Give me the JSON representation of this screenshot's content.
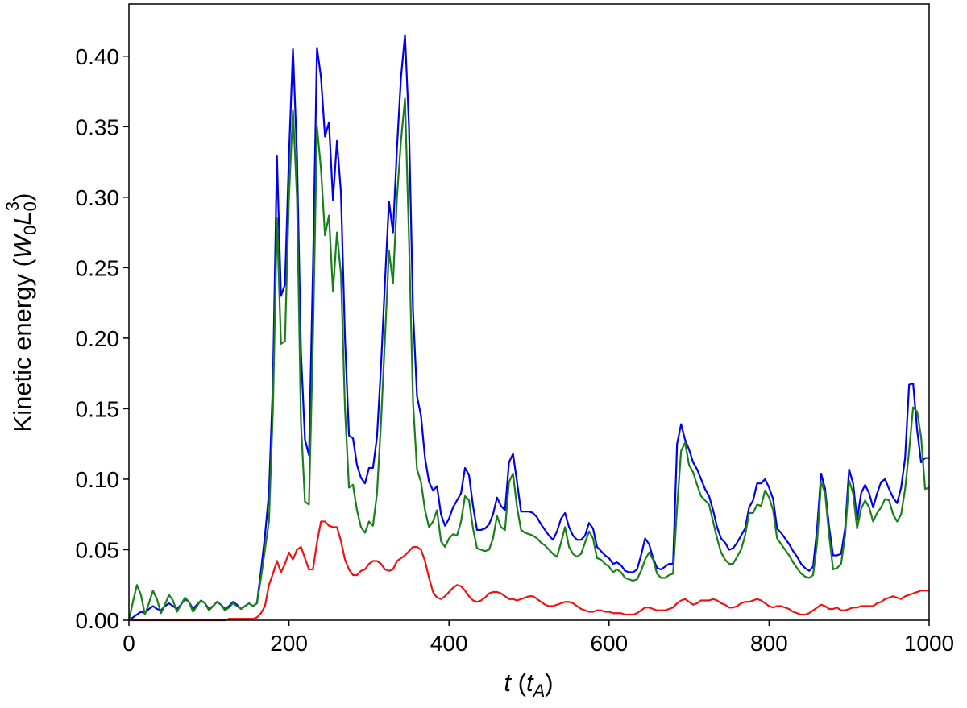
{
  "chart_data": {
    "type": "line",
    "xlabel_parts": [
      "t",
      " (",
      "t",
      "A",
      ")"
    ],
    "ylabel_parts": [
      "Kinetic energy (",
      "W",
      "0",
      "L",
      "0",
      "3",
      ")"
    ],
    "xlim": [
      0,
      1000
    ],
    "xticks": [
      0,
      200,
      400,
      600,
      800,
      1000
    ],
    "ylim": [
      0,
      0.437
    ],
    "yticks": [
      {
        "value": 0,
        "label": "0.00"
      },
      {
        "value": 0.05,
        "label": "0.05"
      },
      {
        "value": 0.1,
        "label": "0.10"
      },
      {
        "value": 0.15,
        "label": "0.15"
      },
      {
        "value": 0.2,
        "label": "0.20"
      },
      {
        "value": 0.25,
        "label": "0.25"
      },
      {
        "value": 0.3,
        "label": "0.30"
      },
      {
        "value": 0.35,
        "label": "0.35"
      },
      {
        "value": 0.4,
        "label": "0.40"
      }
    ],
    "grid": false,
    "x": [
      0,
      5,
      10,
      15,
      20,
      25,
      30,
      35,
      40,
      45,
      50,
      55,
      60,
      65,
      70,
      75,
      80,
      85,
      90,
      95,
      100,
      105,
      110,
      115,
      120,
      125,
      130,
      135,
      140,
      145,
      150,
      155,
      160,
      165,
      170,
      175,
      180,
      185,
      190,
      195,
      200,
      205,
      210,
      215,
      220,
      225,
      230,
      235,
      240,
      245,
      250,
      255,
      260,
      265,
      270,
      275,
      280,
      285,
      290,
      295,
      300,
      305,
      310,
      315,
      320,
      325,
      330,
      335,
      340,
      345,
      350,
      355,
      360,
      365,
      370,
      375,
      380,
      385,
      390,
      395,
      400,
      405,
      410,
      415,
      420,
      425,
      430,
      435,
      440,
      445,
      450,
      455,
      460,
      465,
      470,
      475,
      480,
      485,
      490,
      495,
      500,
      505,
      510,
      515,
      520,
      525,
      530,
      535,
      540,
      545,
      550,
      555,
      560,
      565,
      570,
      575,
      580,
      585,
      590,
      595,
      600,
      605,
      610,
      615,
      620,
      625,
      630,
      635,
      640,
      645,
      650,
      655,
      660,
      665,
      670,
      675,
      680,
      685,
      690,
      695,
      700,
      705,
      710,
      715,
      720,
      725,
      730,
      735,
      740,
      745,
      750,
      755,
      760,
      765,
      770,
      775,
      780,
      785,
      790,
      795,
      800,
      805,
      810,
      815,
      820,
      825,
      830,
      835,
      840,
      845,
      850,
      855,
      860,
      865,
      870,
      875,
      880,
      885,
      890,
      895,
      900,
      905,
      910,
      915,
      920,
      925,
      930,
      935,
      940,
      945,
      950,
      955,
      960,
      965,
      970,
      975,
      980,
      985,
      990,
      995,
      1000
    ],
    "series": [
      {
        "color": "#0000ee",
        "values": [
          0.0,
          0.002,
          0.004,
          0.006,
          0.005,
          0.008,
          0.01,
          0.008,
          0.007,
          0.01,
          0.012,
          0.01,
          0.008,
          0.011,
          0.015,
          0.013,
          0.008,
          0.011,
          0.014,
          0.012,
          0.008,
          0.01,
          0.013,
          0.011,
          0.008,
          0.01,
          0.013,
          0.011,
          0.008,
          0.01,
          0.012,
          0.01,
          0.012,
          0.035,
          0.06,
          0.09,
          0.17,
          0.329,
          0.23,
          0.238,
          0.33,
          0.405,
          0.33,
          0.19,
          0.128,
          0.117,
          0.25,
          0.406,
          0.385,
          0.343,
          0.353,
          0.298,
          0.34,
          0.303,
          0.2,
          0.131,
          0.129,
          0.11,
          0.101,
          0.097,
          0.108,
          0.108,
          0.13,
          0.18,
          0.24,
          0.297,
          0.275,
          0.335,
          0.385,
          0.415,
          0.35,
          0.22,
          0.159,
          0.145,
          0.115,
          0.098,
          0.092,
          0.095,
          0.075,
          0.067,
          0.072,
          0.08,
          0.085,
          0.09,
          0.108,
          0.103,
          0.081,
          0.064,
          0.064,
          0.065,
          0.068,
          0.075,
          0.087,
          0.081,
          0.078,
          0.112,
          0.118,
          0.098,
          0.077,
          0.077,
          0.077,
          0.076,
          0.073,
          0.068,
          0.064,
          0.06,
          0.057,
          0.063,
          0.072,
          0.076,
          0.066,
          0.06,
          0.057,
          0.057,
          0.06,
          0.069,
          0.065,
          0.052,
          0.049,
          0.046,
          0.044,
          0.04,
          0.041,
          0.039,
          0.035,
          0.034,
          0.034,
          0.036,
          0.046,
          0.058,
          0.054,
          0.044,
          0.037,
          0.036,
          0.038,
          0.04,
          0.04,
          0.125,
          0.139,
          0.128,
          0.121,
          0.112,
          0.107,
          0.1,
          0.093,
          0.088,
          0.078,
          0.066,
          0.058,
          0.055,
          0.05,
          0.051,
          0.055,
          0.06,
          0.065,
          0.08,
          0.085,
          0.097,
          0.097,
          0.1,
          0.094,
          0.086,
          0.065,
          0.062,
          0.058,
          0.054,
          0.049,
          0.045,
          0.04,
          0.037,
          0.035,
          0.038,
          0.065,
          0.104,
          0.093,
          0.066,
          0.046,
          0.046,
          0.047,
          0.065,
          0.107,
          0.097,
          0.071,
          0.09,
          0.096,
          0.09,
          0.08,
          0.09,
          0.098,
          0.1,
          0.093,
          0.087,
          0.083,
          0.094,
          0.115,
          0.167,
          0.168,
          0.135,
          0.112,
          0.115,
          0.115
        ]
      },
      {
        "color": "#1a7f1a",
        "values": [
          0.0,
          0.013,
          0.025,
          0.018,
          0.004,
          0.012,
          0.021,
          0.015,
          0.005,
          0.011,
          0.018,
          0.014,
          0.006,
          0.011,
          0.016,
          0.013,
          0.006,
          0.01,
          0.014,
          0.012,
          0.007,
          0.01,
          0.013,
          0.011,
          0.007,
          0.009,
          0.012,
          0.01,
          0.008,
          0.01,
          0.012,
          0.01,
          0.012,
          0.03,
          0.05,
          0.07,
          0.15,
          0.285,
          0.196,
          0.198,
          0.3,
          0.362,
          0.3,
          0.14,
          0.084,
          0.082,
          0.2,
          0.35,
          0.32,
          0.273,
          0.287,
          0.233,
          0.275,
          0.245,
          0.15,
          0.094,
          0.096,
          0.078,
          0.066,
          0.062,
          0.07,
          0.067,
          0.09,
          0.14,
          0.2,
          0.262,
          0.239,
          0.3,
          0.34,
          0.37,
          0.27,
          0.155,
          0.107,
          0.098,
          0.078,
          0.066,
          0.07,
          0.078,
          0.056,
          0.052,
          0.058,
          0.061,
          0.06,
          0.07,
          0.088,
          0.085,
          0.065,
          0.051,
          0.05,
          0.049,
          0.05,
          0.058,
          0.074,
          0.066,
          0.064,
          0.098,
          0.104,
          0.08,
          0.064,
          0.062,
          0.061,
          0.06,
          0.058,
          0.055,
          0.053,
          0.05,
          0.047,
          0.045,
          0.055,
          0.066,
          0.052,
          0.047,
          0.045,
          0.047,
          0.055,
          0.063,
          0.058,
          0.044,
          0.043,
          0.04,
          0.038,
          0.034,
          0.036,
          0.034,
          0.03,
          0.029,
          0.028,
          0.029,
          0.035,
          0.043,
          0.048,
          0.043,
          0.033,
          0.03,
          0.03,
          0.032,
          0.033,
          0.08,
          0.12,
          0.126,
          0.11,
          0.105,
          0.096,
          0.088,
          0.085,
          0.082,
          0.07,
          0.058,
          0.048,
          0.043,
          0.04,
          0.04,
          0.045,
          0.05,
          0.06,
          0.076,
          0.076,
          0.082,
          0.081,
          0.092,
          0.087,
          0.078,
          0.058,
          0.054,
          0.05,
          0.046,
          0.041,
          0.037,
          0.033,
          0.031,
          0.03,
          0.032,
          0.055,
          0.098,
          0.09,
          0.06,
          0.036,
          0.037,
          0.04,
          0.06,
          0.099,
          0.09,
          0.065,
          0.079,
          0.085,
          0.08,
          0.07,
          0.076,
          0.08,
          0.086,
          0.085,
          0.075,
          0.07,
          0.075,
          0.093,
          0.12,
          0.151,
          0.148,
          0.13,
          0.093,
          0.094
        ]
      },
      {
        "color": "#ee1111",
        "values": [
          0,
          0,
          0,
          0,
          0,
          0,
          0,
          0,
          0,
          0,
          0,
          0,
          0,
          0,
          0,
          0,
          0,
          0,
          0,
          0,
          0,
          0,
          0,
          0,
          0,
          0.001,
          0.001,
          0.001,
          0.001,
          0.001,
          0.001,
          0.001,
          0.002,
          0.005,
          0.01,
          0.025,
          0.033,
          0.042,
          0.034,
          0.04,
          0.048,
          0.043,
          0.05,
          0.052,
          0.044,
          0.036,
          0.036,
          0.055,
          0.07,
          0.07,
          0.067,
          0.066,
          0.066,
          0.056,
          0.043,
          0.036,
          0.032,
          0.032,
          0.035,
          0.036,
          0.04,
          0.042,
          0.042,
          0.04,
          0.036,
          0.035,
          0.036,
          0.042,
          0.044,
          0.046,
          0.049,
          0.052,
          0.052,
          0.05,
          0.042,
          0.03,
          0.02,
          0.016,
          0.015,
          0.017,
          0.02,
          0.023,
          0.025,
          0.024,
          0.021,
          0.017,
          0.014,
          0.013,
          0.014,
          0.016,
          0.019,
          0.02,
          0.02,
          0.019,
          0.017,
          0.015,
          0.015,
          0.014,
          0.015,
          0.016,
          0.017,
          0.017,
          0.015,
          0.013,
          0.011,
          0.01,
          0.01,
          0.011,
          0.012,
          0.013,
          0.013,
          0.012,
          0.01,
          0.008,
          0.007,
          0.006,
          0.006,
          0.007,
          0.007,
          0.006,
          0.006,
          0.005,
          0.005,
          0.005,
          0.004,
          0.004,
          0.004,
          0.005,
          0.007,
          0.009,
          0.009,
          0.008,
          0.007,
          0.007,
          0.007,
          0.008,
          0.009,
          0.012,
          0.014,
          0.015,
          0.013,
          0.011,
          0.012,
          0.014,
          0.014,
          0.014,
          0.015,
          0.014,
          0.012,
          0.011,
          0.009,
          0.009,
          0.01,
          0.012,
          0.013,
          0.013,
          0.014,
          0.015,
          0.014,
          0.012,
          0.01,
          0.009,
          0.01,
          0.01,
          0.009,
          0.008,
          0.006,
          0.005,
          0.004,
          0.004,
          0.005,
          0.007,
          0.009,
          0.011,
          0.01,
          0.008,
          0.008,
          0.009,
          0.007,
          0.007,
          0.008,
          0.009,
          0.009,
          0.01,
          0.01,
          0.01,
          0.01,
          0.012,
          0.013,
          0.015,
          0.016,
          0.017,
          0.016,
          0.015,
          0.017,
          0.018,
          0.019,
          0.02,
          0.021,
          0.021,
          0.021
        ]
      }
    ]
  }
}
